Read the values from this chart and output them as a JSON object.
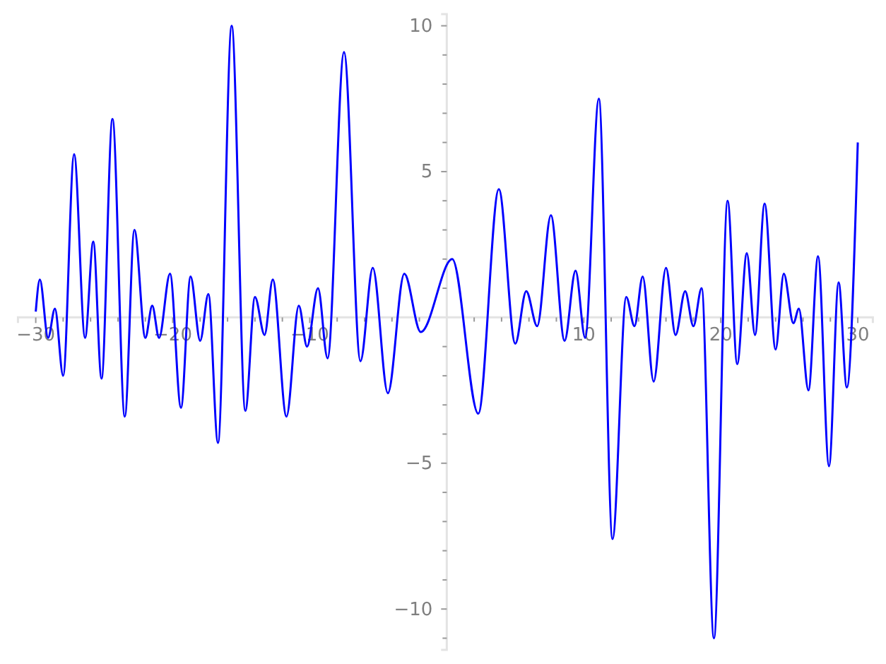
{
  "chart_data": {
    "type": "line",
    "x": [
      -30,
      -29.7,
      -29.1,
      -28.6,
      -28.0,
      -27.2,
      -26.4,
      -25.8,
      -25.2,
      -24.4,
      -23.5,
      -22.8,
      -22.0,
      -21.5,
      -21.0,
      -20.2,
      -19.4,
      -18.7,
      -18.0,
      -17.4,
      -16.7,
      -15.7,
      -14.7,
      -14.0,
      -13.3,
      -12.7,
      -11.7,
      -10.8,
      -10.2,
      -9.4,
      -8.7,
      -7.5,
      -6.3,
      -5.4,
      -4.3,
      -3.1,
      -1.9,
      0.4,
      2.3,
      3.8,
      5.0,
      5.8,
      6.6,
      7.6,
      8.6,
      9.4,
      10.1,
      11.1,
      12.1,
      13.1,
      13.7,
      14.3,
      15.1,
      16.0,
      16.7,
      17.4,
      18.0,
      18.6,
      19.5,
      20.5,
      21.2,
      21.9,
      22.5,
      23.2,
      24.0,
      24.6,
      25.3,
      25.7,
      26.4,
      27.1,
      27.9,
      28.6,
      29.2,
      30
    ],
    "values": [
      0.2,
      1.3,
      -0.7,
      0.3,
      -2.0,
      5.6,
      -0.7,
      2.6,
      -2.1,
      6.8,
      -3.4,
      3.0,
      -0.7,
      0.4,
      -0.7,
      1.5,
      -3.1,
      1.4,
      -0.8,
      0.8,
      -4.3,
      10.0,
      -3.2,
      0.7,
      -0.6,
      1.3,
      -3.4,
      0.4,
      -1.0,
      1.0,
      -1.4,
      9.1,
      -1.5,
      1.7,
      -2.6,
      1.5,
      -0.5,
      2.0,
      -3.3,
      4.4,
      -0.9,
      0.9,
      -0.3,
      3.5,
      -0.8,
      1.6,
      -0.7,
      7.5,
      -7.6,
      0.7,
      -0.3,
      1.4,
      -2.2,
      1.7,
      -0.6,
      0.9,
      -0.3,
      1.0,
      -11.0,
      4.0,
      -1.6,
      2.2,
      -0.6,
      3.9,
      -1.1,
      1.5,
      -0.2,
      0.3,
      -2.5,
      2.1,
      -5.1,
      1.2,
      -2.4,
      6.0
    ],
    "color": "#0000ff",
    "xlim": [
      -31.3,
      31.1
    ],
    "ylim": [
      -11.4,
      10.4
    ],
    "xticks": [
      {
        "value": -30,
        "label": "−30"
      },
      {
        "value": -28,
        "label": null
      },
      {
        "value": -26,
        "label": null
      },
      {
        "value": -24,
        "label": null
      },
      {
        "value": -22,
        "label": null
      },
      {
        "value": -20,
        "label": "−20"
      },
      {
        "value": -18,
        "label": null
      },
      {
        "value": -16,
        "label": null
      },
      {
        "value": -14,
        "label": null
      },
      {
        "value": -12,
        "label": null
      },
      {
        "value": -10,
        "label": "−10"
      },
      {
        "value": -8,
        "label": null
      },
      {
        "value": -6,
        "label": null
      },
      {
        "value": -4,
        "label": null
      },
      {
        "value": -2,
        "label": null
      },
      {
        "value": 2,
        "label": null
      },
      {
        "value": 4,
        "label": null
      },
      {
        "value": 6,
        "label": null
      },
      {
        "value": 8,
        "label": null
      },
      10,
      {
        "value": 12,
        "label": null
      },
      {
        "value": 14,
        "label": null
      },
      {
        "value": 16,
        "label": null
      },
      {
        "value": 18,
        "label": null
      },
      20,
      {
        "value": 22,
        "label": null
      },
      {
        "value": 24,
        "label": null
      },
      {
        "value": 26,
        "label": null
      },
      {
        "value": 28,
        "label": null
      },
      30
    ],
    "yticks": [
      {
        "value": -11,
        "label": null
      },
      {
        "value": -10,
        "label": "−10"
      },
      {
        "value": -9,
        "label": null
      },
      {
        "value": -8,
        "label": null
      },
      {
        "value": -7,
        "label": null
      },
      {
        "value": -6,
        "label": null
      },
      {
        "value": -5,
        "label": "−5"
      },
      {
        "value": -4,
        "label": null
      },
      {
        "value": -3,
        "label": null
      },
      {
        "value": -2,
        "label": null
      },
      {
        "value": -1,
        "label": null
      },
      {
        "value": 1,
        "label": null
      },
      {
        "value": 2,
        "label": null
      },
      {
        "value": 3,
        "label": null
      },
      {
        "value": 4,
        "label": null
      },
      5,
      {
        "value": 6,
        "label": null
      },
      {
        "value": 7,
        "label": null
      },
      {
        "value": 8,
        "label": null
      },
      {
        "value": 9,
        "label": null
      },
      10
    ],
    "grid": false,
    "marker": "none",
    "line_style": "solid"
  }
}
